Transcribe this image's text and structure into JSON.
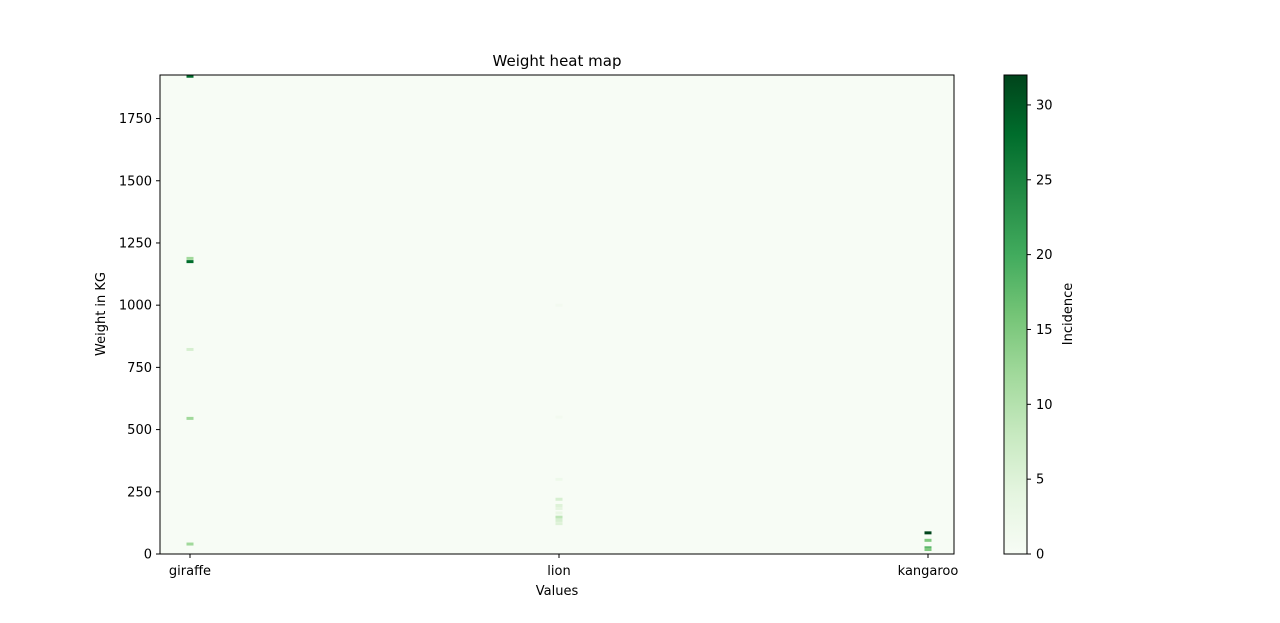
{
  "chart_data": {
    "type": "heatmap",
    "title": "Weight heat map",
    "xlabel": "Values",
    "ylabel": "Weight in KG",
    "categories": [
      "giraffe",
      "lion",
      "kangaroo"
    ],
    "ylim": [
      0,
      1925
    ],
    "yticks": [
      0,
      250,
      500,
      750,
      1000,
      1250,
      1500,
      1750
    ],
    "colorbar": {
      "label": "Incidence",
      "range": [
        0,
        32
      ],
      "ticks": [
        0,
        5,
        10,
        15,
        20,
        25,
        30
      ],
      "colormap": "Greens",
      "low_color": "#f7fcf5",
      "high_color": "#00441b"
    },
    "grid": false,
    "cells": [
      {
        "category": "giraffe",
        "weight": 1920,
        "count": 28
      },
      {
        "category": "giraffe",
        "weight": 1188,
        "count": 12
      },
      {
        "category": "giraffe",
        "weight": 1175,
        "count": 28
      },
      {
        "category": "giraffe",
        "weight": 822,
        "count": 6
      },
      {
        "category": "giraffe",
        "weight": 545,
        "count": 12
      },
      {
        "category": "giraffe",
        "weight": 40,
        "count": 12
      },
      {
        "category": "lion",
        "weight": 1000,
        "count": 1
      },
      {
        "category": "lion",
        "weight": 550,
        "count": 1
      },
      {
        "category": "lion",
        "weight": 300,
        "count": 2
      },
      {
        "category": "lion",
        "weight": 220,
        "count": 6
      },
      {
        "category": "lion",
        "weight": 195,
        "count": 5
      },
      {
        "category": "lion",
        "weight": 183,
        "count": 4
      },
      {
        "category": "lion",
        "weight": 165,
        "count": 3
      },
      {
        "category": "lion",
        "weight": 148,
        "count": 9
      },
      {
        "category": "lion",
        "weight": 135,
        "count": 6
      },
      {
        "category": "lion",
        "weight": 122,
        "count": 5
      },
      {
        "category": "kangaroo",
        "weight": 85,
        "count": 32
      },
      {
        "category": "kangaroo",
        "weight": 55,
        "count": 15
      },
      {
        "category": "kangaroo",
        "weight": 25,
        "count": 18
      },
      {
        "category": "kangaroo",
        "weight": 18,
        "count": 15
      }
    ]
  }
}
